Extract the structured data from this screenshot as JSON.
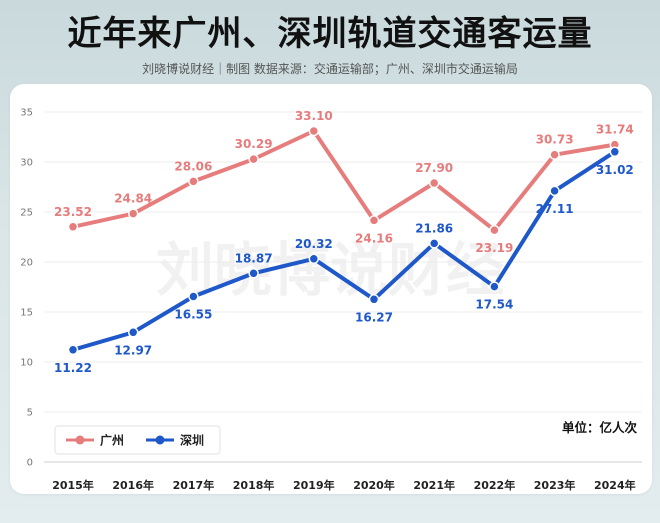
{
  "title": "近年来广州、深圳轨道交通客运量",
  "subtitle": "刘晓博说财经｜制图 数据来源：交通运输部；广州、深圳市交通运输局",
  "watermark": "刘晓博说财经",
  "chart_data": {
    "type": "line",
    "categories": [
      "2015年",
      "2016年",
      "2017年",
      "2018年",
      "2019年",
      "2020年",
      "2021年",
      "2022年",
      "2023年",
      "2024年"
    ],
    "series": [
      {
        "name": "广州",
        "color": "#e77c7c",
        "values": [
          23.52,
          24.84,
          28.06,
          30.29,
          33.1,
          24.16,
          27.9,
          23.19,
          30.73,
          31.74
        ]
      },
      {
        "name": "深圳",
        "color": "#1f58c9",
        "values": [
          11.22,
          12.97,
          16.55,
          18.87,
          20.32,
          16.27,
          21.86,
          17.54,
          27.11,
          31.02
        ]
      }
    ],
    "unit_label": "单位：亿人次",
    "ylim": [
      0,
      35
    ],
    "yticks": [
      0,
      5,
      10,
      15,
      20,
      25,
      30,
      35
    ],
    "legend_position": "bottom-left",
    "grid": true
  }
}
